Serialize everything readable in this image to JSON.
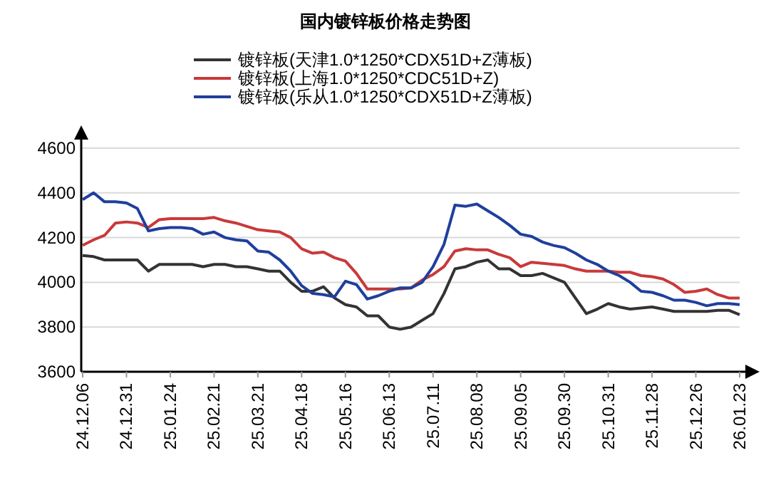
{
  "chart_data": {
    "type": "line",
    "title": "国内镀锌板价格走势图",
    "categories": [
      "24.12.06",
      null,
      null,
      null,
      "24.12.31",
      null,
      null,
      null,
      "25.01.24",
      null,
      null,
      null,
      "25.02.21",
      null,
      null,
      null,
      "25.03.21",
      null,
      null,
      null,
      "25.04.18",
      null,
      null,
      null,
      "25.05.16",
      null,
      null,
      null,
      "25.06.13",
      null,
      null,
      null,
      "25.07.11",
      null,
      null,
      null,
      "25.08.08",
      null,
      null,
      null,
      "25.09.05",
      null,
      null,
      null,
      "25.09.30",
      null,
      null,
      null,
      "25.10.31",
      null,
      null,
      null,
      "25.11.28",
      null,
      null,
      null,
      "25.12.26",
      null,
      null,
      null,
      "26.01.23"
    ],
    "series": [
      {
        "name": "镀锌板(天津1.0*1250*CDX51D+Z薄板)",
        "color": "#333333",
        "values": [
          4120,
          4115,
          4100,
          4100,
          4100,
          4100,
          4050,
          4080,
          4080,
          4080,
          4080,
          4070,
          4080,
          4080,
          4070,
          4070,
          4060,
          4050,
          4050,
          4000,
          3960,
          3960,
          3980,
          3930,
          3900,
          3890,
          3850,
          3850,
          3800,
          3790,
          3800,
          3830,
          3860,
          3950,
          4060,
          4070,
          4090,
          4100,
          4060,
          4060,
          4030,
          4030,
          4040,
          4020,
          4000,
          3930,
          3860,
          3880,
          3905,
          3890,
          3880,
          3885,
          3890,
          3880,
          3870,
          3870,
          3870,
          3870,
          3875,
          3875,
          3855
        ]
      },
      {
        "name": "镀锌板(上海1.0*1250*CDC51D+Z)",
        "color": "#c9393a",
        "values": [
          4165,
          4190,
          4210,
          4265,
          4270,
          4265,
          4245,
          4280,
          4285,
          4285,
          4285,
          4285,
          4290,
          4275,
          4265,
          4250,
          4235,
          4230,
          4225,
          4200,
          4150,
          4130,
          4135,
          4110,
          4095,
          4040,
          3970,
          3970,
          3970,
          3970,
          3975,
          4010,
          4035,
          4070,
          4140,
          4150,
          4145,
          4145,
          4125,
          4110,
          4070,
          4090,
          4085,
          4080,
          4075,
          4060,
          4050,
          4050,
          4050,
          4045,
          4045,
          4030,
          4025,
          4015,
          3990,
          3955,
          3960,
          3970,
          3945,
          3930,
          3930
        ]
      },
      {
        "name": "镀锌板(乐从1.0*1250*CDX51D+Z薄板)",
        "color": "#1f3f9c",
        "values": [
          4370,
          4400,
          4360,
          4360,
          4355,
          4330,
          4230,
          4240,
          4245,
          4245,
          4240,
          4215,
          4225,
          4200,
          4190,
          4185,
          4140,
          4135,
          4100,
          4050,
          3985,
          3950,
          3945,
          3935,
          4005,
          3990,
          3925,
          3940,
          3960,
          3975,
          3975,
          4000,
          4070,
          4170,
          4345,
          4340,
          4350,
          4320,
          4290,
          4255,
          4215,
          4205,
          4180,
          4165,
          4155,
          4130,
          4100,
          4080,
          4050,
          4030,
          4000,
          3960,
          3955,
          3940,
          3920,
          3920,
          3910,
          3895,
          3905,
          3905,
          3900
        ]
      }
    ],
    "ylim": [
      3600,
      4600
    ],
    "yticks": [
      3600,
      3800,
      4000,
      4200,
      4400,
      4600
    ],
    "grid": "y",
    "legend": "top",
    "marker": "none",
    "line_style": "solid"
  }
}
